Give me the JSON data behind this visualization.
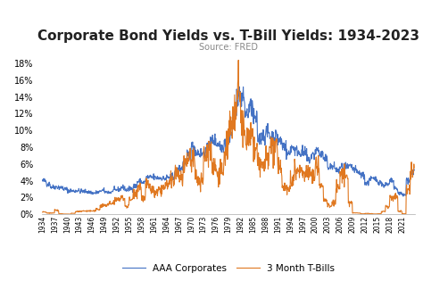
{
  "title": "Corporate Bond Yields vs. T-Bill Yields: 1934-2023",
  "subtitle": "Source: FRED",
  "ylim": [
    0,
    0.19
  ],
  "yticks": [
    0.0,
    0.02,
    0.04,
    0.06,
    0.08,
    0.1,
    0.12,
    0.14,
    0.16,
    0.18
  ],
  "aaa_color": "#4472c4",
  "tbill_color": "#e07820",
  "bg_color": "#ffffff",
  "legend_labels": [
    "AAA Corporates",
    "3 Month T-Bills"
  ],
  "title_fontsize": 11,
  "subtitle_fontsize": 7,
  "tick_fontsize": 7
}
